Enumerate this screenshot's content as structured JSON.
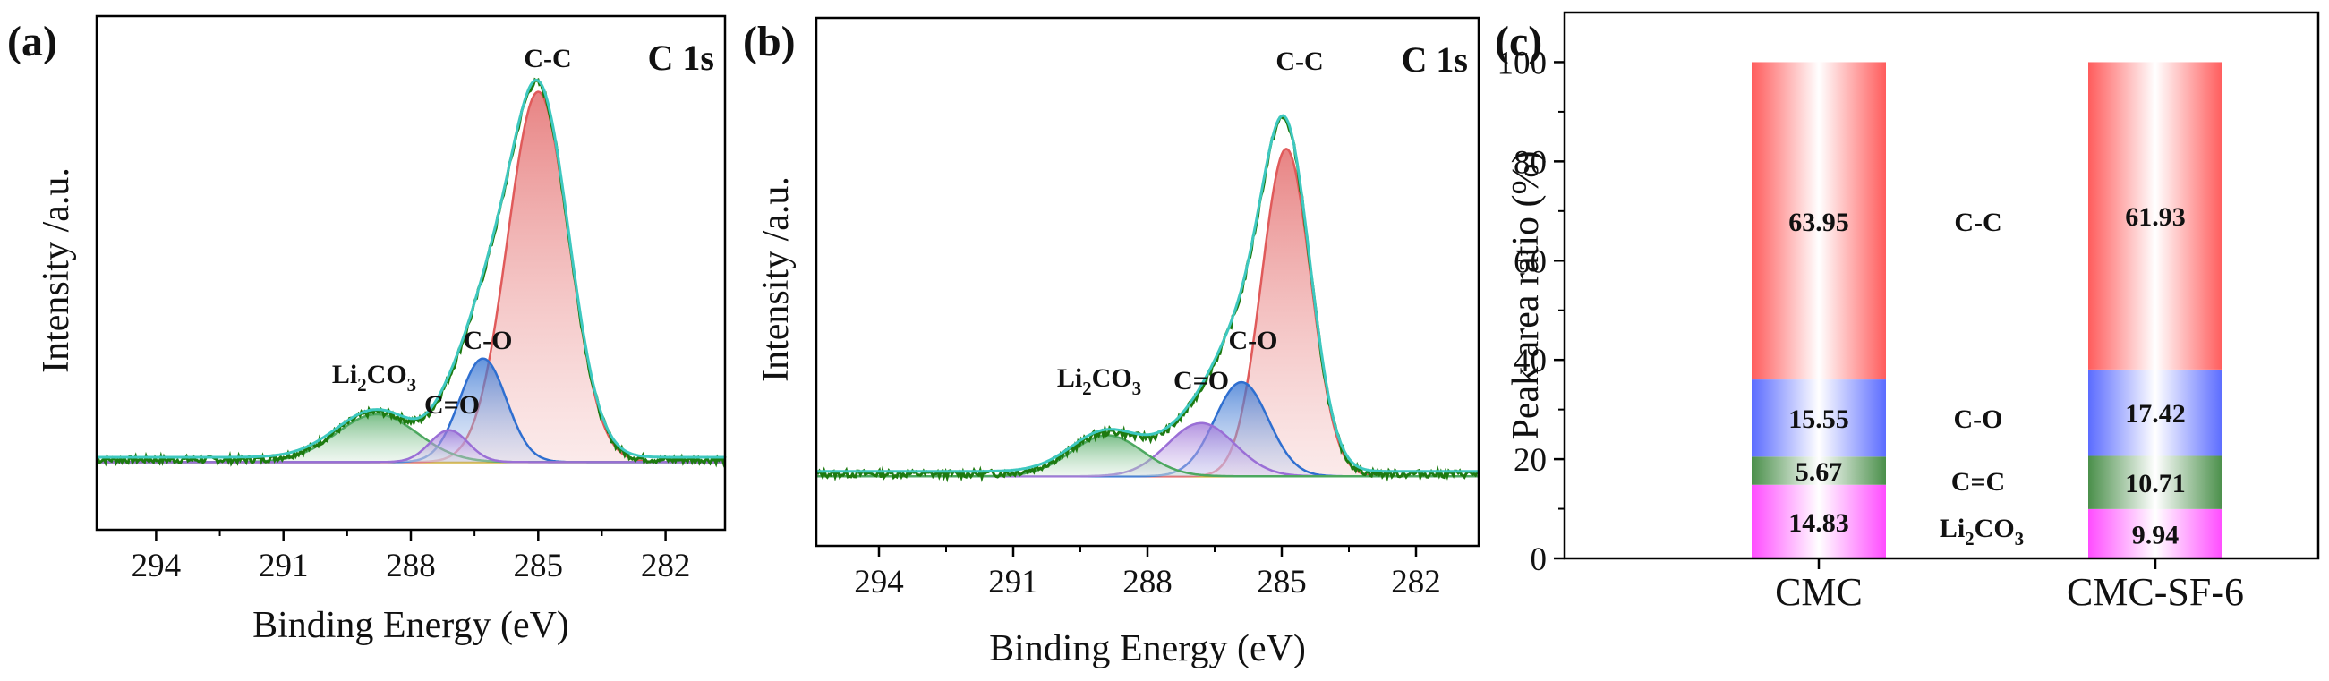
{
  "figure": {
    "panels": [
      {
        "id": "a",
        "label": "(a)"
      },
      {
        "id": "b",
        "label": "(b)"
      },
      {
        "id": "c",
        "label": "(c)"
      }
    ]
  },
  "colors": {
    "envelope": "#1e7a10",
    "fit": "#3ec8c0",
    "baseline": "#c9a418",
    "cc": "#e05a5a",
    "co": "#2f6fd0",
    "c_eq_o": "#9a6fd6",
    "li2co3": "#4da860",
    "bar_cc": "#ff5c5c",
    "bar_co": "#5b6cff",
    "bar_ceqc": "#4a8f4a",
    "bar_li": "#ff4cff"
  },
  "chart_data": [
    {
      "type": "line",
      "panel": "(a)",
      "title": "C 1s",
      "xlabel": "Binding Energy (eV)",
      "ylabel": "Intensity /a.u.",
      "xlim": [
        295.4,
        280.6
      ],
      "xticks": [
        294,
        291,
        288,
        285,
        282
      ],
      "ylim": [
        -0.17,
        1.12
      ],
      "baseline": 0.0,
      "peaks": [
        {
          "name": "C-C",
          "label": "C-C",
          "center": 285.0,
          "height": 0.93,
          "sigma": 0.72,
          "color_key": "cc"
        },
        {
          "name": "C-O",
          "label": "C-O",
          "center": 286.3,
          "height": 0.26,
          "sigma": 0.55,
          "color_key": "co"
        },
        {
          "name": "C=O",
          "label": "C=O",
          "center": 287.1,
          "height": 0.08,
          "sigma": 0.45,
          "color_key": "c_eq_o"
        },
        {
          "name": "Li2CO3",
          "label_main": "Li",
          "label_sub1": "2",
          "label_mid": "CO",
          "label_sub2": "3",
          "center": 288.8,
          "height": 0.12,
          "sigma": 0.95,
          "color_key": "li2co3"
        }
      ]
    },
    {
      "type": "line",
      "panel": "(b)",
      "title": "C 1s",
      "xlabel": "Binding Energy (eV)",
      "ylabel": "Intensity /a.u.",
      "xlim": [
        295.4,
        280.6
      ],
      "xticks": [
        294,
        291,
        288,
        285,
        282
      ],
      "ylim": [
        -0.17,
        1.12
      ],
      "baseline": 0.0,
      "peaks": [
        {
          "name": "C-C",
          "label": "C-C",
          "center": 284.9,
          "height": 0.8,
          "sigma": 0.55,
          "color_key": "cc"
        },
        {
          "name": "C-O",
          "label": "C-O",
          "center": 285.9,
          "height": 0.23,
          "sigma": 0.6,
          "color_key": "co"
        },
        {
          "name": "C=O",
          "label": "C=O",
          "center": 286.8,
          "height": 0.13,
          "sigma": 0.75,
          "color_key": "c_eq_o"
        },
        {
          "name": "Li2CO3",
          "label_main": "Li",
          "label_sub1": "2",
          "label_mid": "CO",
          "label_sub2": "3",
          "center": 288.9,
          "height": 0.1,
          "sigma": 0.8,
          "color_key": "li2co3"
        }
      ]
    },
    {
      "type": "bar",
      "panel": "(c)",
      "stacked": true,
      "xlabel": "",
      "ylabel": "Peak area ratio (%)",
      "ylim": [
        0,
        110
      ],
      "yticks": [
        0,
        20,
        40,
        60,
        80,
        100
      ],
      "categories": [
        "CMC",
        "CMC-SF-6"
      ],
      "series": [
        {
          "name": "Li2CO3",
          "label_main": "Li",
          "label_sub1": "2",
          "label_mid": "CO",
          "label_sub2": "3",
          "values": [
            14.83,
            9.94
          ],
          "labels": [
            "14.83",
            "9.94"
          ],
          "color_key": "bar_li"
        },
        {
          "name": "C=C",
          "label": "C=C",
          "values": [
            5.67,
            10.71
          ],
          "labels": [
            "5.67",
            "10.71"
          ],
          "color_key": "bar_ceqc"
        },
        {
          "name": "C-O",
          "label": "C-O",
          "values": [
            15.55,
            17.42
          ],
          "labels": [
            "15.55",
            "17.42"
          ],
          "color_key": "bar_co"
        },
        {
          "name": "C-C",
          "label": "C-C",
          "values": [
            63.95,
            61.93
          ],
          "labels": [
            "63.95",
            "61.93"
          ],
          "color_key": "bar_cc"
        }
      ]
    }
  ]
}
